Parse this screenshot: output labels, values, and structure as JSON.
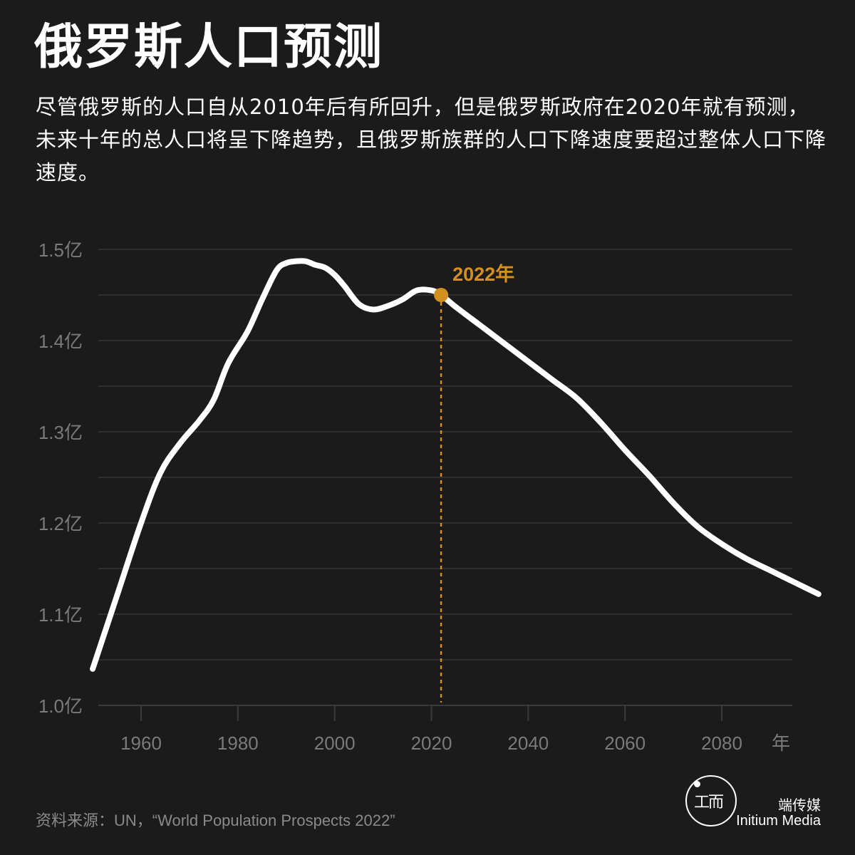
{
  "header": {
    "title": "俄罗斯人口预测",
    "subtitle": "尽管俄罗斯的人口自从2010年后有所回升，但是俄罗斯政府在2020年就有预测，未来十年的总人口将呈下降趋势，且俄罗斯族群的人口下降速度要超过整体人口下降速度。"
  },
  "colors": {
    "background": "#1b1b1b",
    "line": "#ffffff",
    "accent": "#d4901f",
    "grid": "#3a3a3a",
    "tick_text": "#7a7a7a"
  },
  "chart_data": {
    "type": "line",
    "title": "",
    "xlabel": "年",
    "ylabel": "",
    "xlim": [
      1950,
      2100
    ],
    "ylim": [
      1.0,
      1.5
    ],
    "y_ticks": [
      1.0,
      1.1,
      1.2,
      1.3,
      1.4,
      1.5
    ],
    "y_tick_labels": [
      "1.0亿",
      "1.1亿",
      "1.2亿",
      "1.3亿",
      "1.4亿",
      "1.5亿"
    ],
    "x_ticks": [
      1960,
      1980,
      2000,
      2020,
      2040,
      2060,
      2080
    ],
    "x_tick_labels": [
      "1960",
      "1980",
      "2000",
      "2020",
      "2040",
      "2060",
      "2080"
    ],
    "grid": true,
    "series": [
      {
        "values_x": [
          1950,
          1955,
          1960,
          1964,
          1968,
          1972,
          1975,
          1978,
          1982,
          1985,
          1988,
          1990,
          1992,
          1994,
          1996,
          1998,
          2000,
          2002,
          2005,
          2008,
          2011,
          2014,
          2017,
          2020,
          2022,
          2025,
          2030,
          2035,
          2040,
          2045,
          2050,
          2055,
          2060,
          2065,
          2070,
          2075,
          2080,
          2085,
          2090,
          2095,
          2100
        ],
        "values_y": [
          1.04,
          1.12,
          1.2,
          1.255,
          1.287,
          1.312,
          1.335,
          1.375,
          1.41,
          1.445,
          1.477,
          1.485,
          1.487,
          1.487,
          1.483,
          1.48,
          1.472,
          1.46,
          1.44,
          1.434,
          1.438,
          1.445,
          1.455,
          1.455,
          1.45,
          1.437,
          1.417,
          1.397,
          1.377,
          1.357,
          1.337,
          1.31,
          1.28,
          1.252,
          1.222,
          1.196,
          1.177,
          1.161,
          1.148,
          1.135,
          1.122
        ]
      }
    ],
    "annotation": {
      "x": 2022,
      "y": 1.45,
      "label": "2022年"
    }
  },
  "footer": {
    "source": "资料来源：UN，“World Population Prospects 2022”",
    "brand_cn": "端传媒",
    "brand_en": "Initium Media",
    "logo_glyph": "工而"
  }
}
